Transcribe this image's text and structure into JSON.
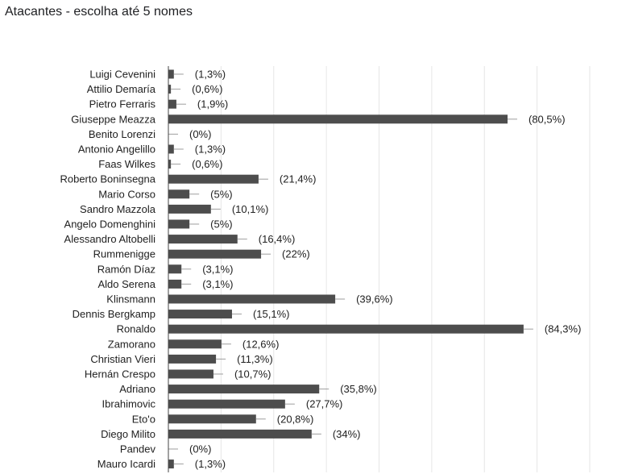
{
  "title": "Atacantes - escolha até 5 nomes",
  "colors": {
    "bar": "#4d4d4d",
    "grid": "#e6e6e6",
    "axis": "#444444",
    "whisker": "#9e9e9e"
  },
  "chart_data": {
    "type": "bar",
    "orientation": "horizontal",
    "title": "Atacantes - escolha até 5 nomes",
    "xlabel": "",
    "ylabel": "",
    "xlim": [
      0,
      100
    ],
    "grid": true,
    "legend": "none",
    "categories": [
      "Luigi Cevenini",
      "Attilio Demaría",
      "Pietro Ferraris",
      "Giuseppe Meazza",
      "Benito Lorenzi",
      "Antonio Angelillo",
      "Faas Wilkes",
      "Roberto Boninsegna",
      "Mario Corso",
      "Sandro Mazzola",
      "Angelo Domenghini",
      "Alessandro Altobelli",
      "Rummenigge",
      "Ramón Díaz",
      "Aldo Serena",
      "Klinsmann",
      "Dennis Bergkamp",
      "Ronaldo",
      "Zamorano",
      "Christian Vieri",
      "Hernán Crespo",
      "Adriano",
      "Ibrahimovic",
      "Eto'o",
      "Diego Milito",
      "Pandev",
      "Mauro Icardi"
    ],
    "values": [
      1.3,
      0.6,
      1.9,
      80.5,
      0,
      1.3,
      0.6,
      21.4,
      5,
      10.1,
      5,
      16.4,
      22,
      3.1,
      3.1,
      39.6,
      15.1,
      84.3,
      12.6,
      11.3,
      10.7,
      35.8,
      27.7,
      20.8,
      34,
      0,
      1.3
    ],
    "data_labels": [
      "(1,3%)",
      "(0,6%)",
      "(1,9%)",
      "(80,5%)",
      "(0%)",
      "(1,3%)",
      "(0,6%)",
      "(21,4%)",
      "(5%)",
      "(10,1%)",
      "(5%)",
      "(16,4%)",
      "(22%)",
      "(3,1%)",
      "(3,1%)",
      "(39,6%)",
      "(15,1%)",
      "(84,3%)",
      "(12,6%)",
      "(11,3%)",
      "(10,7%)",
      "(35,8%)",
      "(27,7%)",
      "(20,8%)",
      "(34%)",
      "(0%)",
      "(1,3%)"
    ]
  }
}
